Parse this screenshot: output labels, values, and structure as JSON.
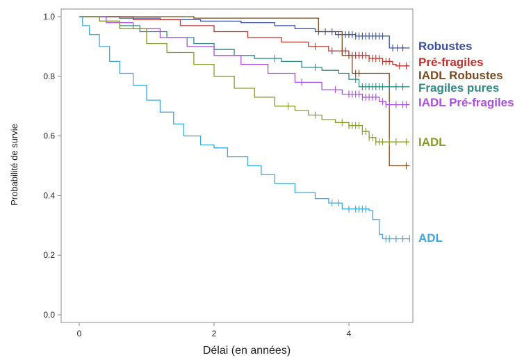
{
  "chart_data": {
    "type": "line",
    "title": "",
    "xlabel": "Délai (en années)",
    "ylabel": "Probabilité de survie",
    "xlim": [
      -0.2,
      4.9
    ],
    "ylim": [
      -0.02,
      1.03
    ],
    "xticks": [
      0,
      2,
      4
    ],
    "xtick_labels": [
      "0",
      "2",
      "4"
    ],
    "yticks": [
      0.0,
      0.2,
      0.4,
      0.6,
      0.8,
      1.0
    ],
    "ytick_labels": [
      "0.0",
      "0.2",
      "0.4",
      "0.6",
      "0.8",
      "1.0"
    ],
    "grid": false,
    "legend": "right",
    "series": [
      {
        "name": "Robustes",
        "color": "#3a4f9f",
        "step": [
          [
            0,
            1.0
          ],
          [
            0.6,
            0.995
          ],
          [
            1.2,
            0.99
          ],
          [
            1.8,
            0.985
          ],
          [
            2.4,
            0.98
          ],
          [
            2.9,
            0.97
          ],
          [
            3.2,
            0.96
          ],
          [
            3.5,
            0.95
          ],
          [
            3.8,
            0.94
          ],
          [
            4.1,
            0.935
          ],
          [
            4.55,
            0.935
          ],
          [
            4.6,
            0.895
          ],
          [
            4.9,
            0.895
          ]
        ],
        "censor": [
          3.55,
          3.65,
          3.75,
          3.85,
          3.95,
          4.0,
          4.05,
          4.1,
          4.15,
          4.2,
          4.25,
          4.3,
          4.35,
          4.4,
          4.45,
          4.5,
          4.65,
          4.72,
          4.8
        ]
      },
      {
        "name": "Pré-fragiles",
        "color": "#c0312b",
        "step": [
          [
            0,
            1.0
          ],
          [
            0.8,
            0.99
          ],
          [
            1.5,
            0.97
          ],
          [
            2.0,
            0.95
          ],
          [
            2.5,
            0.93
          ],
          [
            3.0,
            0.915
          ],
          [
            3.4,
            0.9
          ],
          [
            3.7,
            0.885
          ],
          [
            4.0,
            0.87
          ],
          [
            4.3,
            0.86
          ],
          [
            4.5,
            0.85
          ],
          [
            4.65,
            0.84
          ],
          [
            4.7,
            0.835
          ],
          [
            4.9,
            0.835
          ]
        ],
        "censor": [
          3.5,
          3.75,
          3.9,
          3.95,
          4.0,
          4.05,
          4.1,
          4.15,
          4.2,
          4.25,
          4.3,
          4.35,
          4.4,
          4.45,
          4.5,
          4.55,
          4.6,
          4.75,
          4.85
        ]
      },
      {
        "name": "IADL Robustes",
        "color": "#7b4a1f",
        "step": [
          [
            0,
            1.0
          ],
          [
            1.7,
            0.995
          ],
          [
            3.5,
            0.995
          ],
          [
            3.55,
            0.95
          ],
          [
            3.85,
            0.95
          ],
          [
            3.9,
            0.87
          ],
          [
            4.0,
            0.87
          ],
          [
            4.05,
            0.81
          ],
          [
            4.55,
            0.81
          ],
          [
            4.6,
            0.5
          ],
          [
            4.9,
            0.5
          ]
        ],
        "censor": [
          4.1,
          4.15,
          4.85
        ]
      },
      {
        "name": "Fragiles pures",
        "color": "#2e8a8a",
        "step": [
          [
            0,
            1.0
          ],
          [
            0.3,
            0.985
          ],
          [
            0.6,
            0.97
          ],
          [
            0.9,
            0.95
          ],
          [
            1.3,
            0.93
          ],
          [
            1.7,
            0.91
          ],
          [
            2.0,
            0.89
          ],
          [
            2.3,
            0.87
          ],
          [
            2.6,
            0.86
          ],
          [
            3.0,
            0.85
          ],
          [
            3.3,
            0.83
          ],
          [
            3.6,
            0.82
          ],
          [
            3.85,
            0.81
          ],
          [
            4.0,
            0.79
          ],
          [
            4.15,
            0.765
          ],
          [
            4.9,
            0.765
          ]
        ],
        "censor": [
          2.9,
          3.5,
          4.1,
          4.2,
          4.25,
          4.3,
          4.35,
          4.4,
          4.45,
          4.5,
          4.6,
          4.7,
          4.8
        ]
      },
      {
        "name": "IADL Pré-fragiles",
        "color": "#a94ee0",
        "step": [
          [
            0,
            1.0
          ],
          [
            0.4,
            0.98
          ],
          [
            0.8,
            0.96
          ],
          [
            1.2,
            0.93
          ],
          [
            1.6,
            0.9
          ],
          [
            2.0,
            0.87
          ],
          [
            2.4,
            0.84
          ],
          [
            2.8,
            0.81
          ],
          [
            3.2,
            0.78
          ],
          [
            3.6,
            0.755
          ],
          [
            3.9,
            0.74
          ],
          [
            4.2,
            0.73
          ],
          [
            4.45,
            0.715
          ],
          [
            4.55,
            0.705
          ],
          [
            4.9,
            0.705
          ]
        ],
        "censor": [
          3.3,
          3.8,
          4.0,
          4.05,
          4.1,
          4.15,
          4.2,
          4.25,
          4.3,
          4.35,
          4.4,
          4.5,
          4.55,
          4.6,
          4.7,
          4.8,
          4.85
        ]
      },
      {
        "name": "IADL",
        "color": "#8a9a2a",
        "step": [
          [
            0,
            1.0
          ],
          [
            0.3,
            0.985
          ],
          [
            0.6,
            0.96
          ],
          [
            1.0,
            0.91
          ],
          [
            1.3,
            0.88
          ],
          [
            1.7,
            0.84
          ],
          [
            2.0,
            0.8
          ],
          [
            2.3,
            0.76
          ],
          [
            2.6,
            0.73
          ],
          [
            2.9,
            0.7
          ],
          [
            3.2,
            0.685
          ],
          [
            3.4,
            0.67
          ],
          [
            3.6,
            0.655
          ],
          [
            3.8,
            0.645
          ],
          [
            4.0,
            0.635
          ],
          [
            4.2,
            0.615
          ],
          [
            4.3,
            0.595
          ],
          [
            4.4,
            0.58
          ],
          [
            4.9,
            0.58
          ]
        ],
        "censor": [
          3.1,
          3.5,
          3.9,
          4.0,
          4.05,
          4.1,
          4.15,
          4.2,
          4.25,
          4.3,
          4.35,
          4.4,
          4.45,
          4.5,
          4.6,
          4.7,
          4.85
        ]
      },
      {
        "name": "ADL",
        "color": "#3aa8e6",
        "step": [
          [
            0,
            1.0
          ],
          [
            0.05,
            0.97
          ],
          [
            0.15,
            0.94
          ],
          [
            0.3,
            0.9
          ],
          [
            0.45,
            0.85
          ],
          [
            0.6,
            0.81
          ],
          [
            0.8,
            0.77
          ],
          [
            1.0,
            0.72
          ],
          [
            1.2,
            0.68
          ],
          [
            1.4,
            0.64
          ],
          [
            1.55,
            0.6
          ],
          [
            1.8,
            0.57
          ],
          [
            2.0,
            0.56
          ],
          [
            2.2,
            0.53
          ],
          [
            2.5,
            0.5
          ],
          [
            2.7,
            0.47
          ],
          [
            2.9,
            0.44
          ],
          [
            3.2,
            0.41
          ],
          [
            3.5,
            0.39
          ],
          [
            3.7,
            0.375
          ],
          [
            3.9,
            0.355
          ],
          [
            4.3,
            0.35
          ],
          [
            4.35,
            0.32
          ],
          [
            4.45,
            0.27
          ],
          [
            4.5,
            0.255
          ],
          [
            4.9,
            0.255
          ]
        ],
        "censor": [
          3.75,
          3.85,
          4.0,
          4.1,
          4.15,
          4.2,
          4.25,
          4.55,
          4.6,
          4.7,
          4.8,
          4.9
        ]
      }
    ]
  }
}
